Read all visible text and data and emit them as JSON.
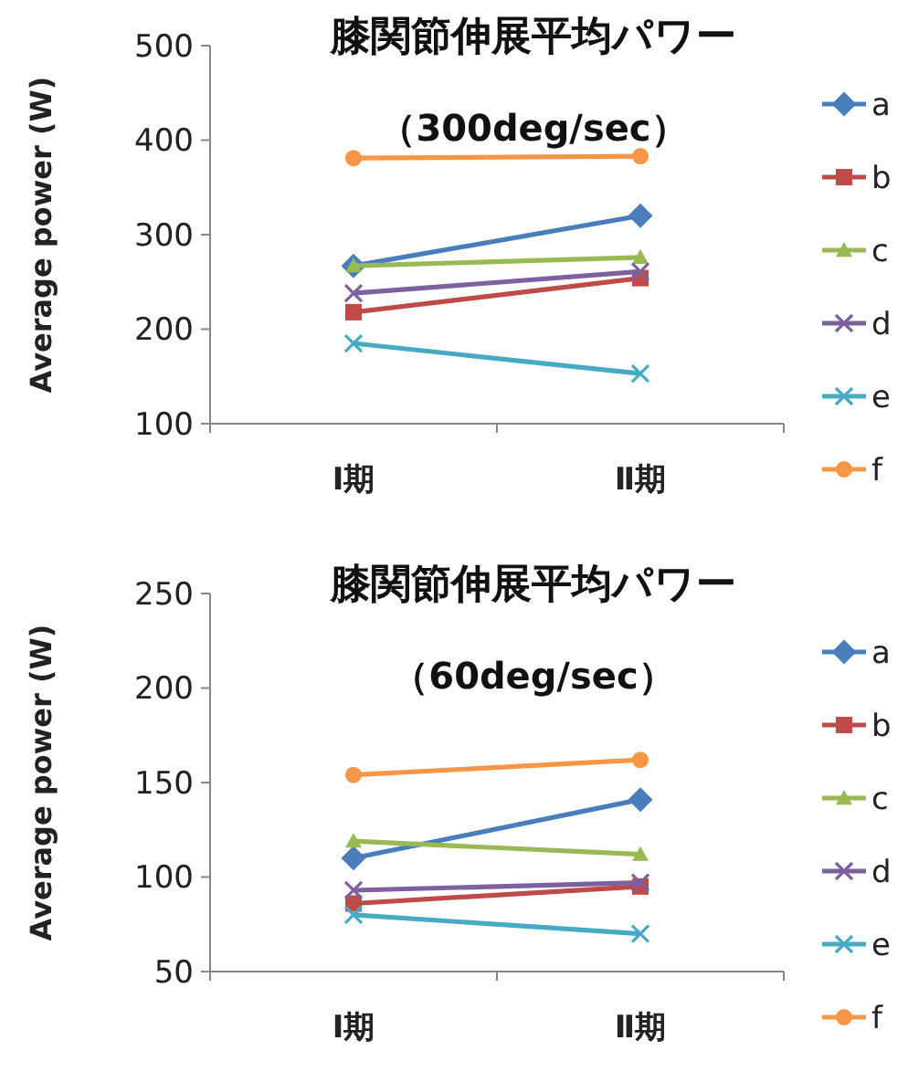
{
  "chart_data": [
    {
      "type": "line",
      "title": "膝関節伸展平均パワー",
      "subtitle": "（300deg/sec）",
      "ylabel": "Average power (W)",
      "categories": [
        "Ⅰ期",
        "Ⅱ期"
      ],
      "ylim": [
        100,
        500
      ],
      "yticks": [
        100,
        200,
        300,
        400,
        500
      ],
      "grid": false,
      "legend": "right",
      "series": [
        {
          "name": "a",
          "color": "#4a7ebb",
          "marker": "diamond",
          "values": [
            267,
            320
          ]
        },
        {
          "name": "b",
          "color": "#be4b48",
          "marker": "square",
          "values": [
            218,
            254
          ]
        },
        {
          "name": "c",
          "color": "#98b954",
          "marker": "triangle",
          "values": [
            267,
            276
          ]
        },
        {
          "name": "d",
          "color": "#7d60a0",
          "marker": "cross",
          "values": [
            238,
            261
          ]
        },
        {
          "name": "e",
          "color": "#46aac5",
          "marker": "cross",
          "values": [
            185,
            153
          ]
        },
        {
          "name": "f",
          "color": "#f79646",
          "marker": "circle",
          "values": [
            381,
            383
          ]
        }
      ]
    },
    {
      "type": "line",
      "title": "膝関節伸展平均パワー",
      "subtitle": "（60deg/sec）",
      "ylabel": "Average power (W)",
      "categories": [
        "Ⅰ期",
        "Ⅱ期"
      ],
      "ylim": [
        50,
        250
      ],
      "yticks": [
        50,
        100,
        150,
        200,
        250
      ],
      "grid": false,
      "legend": "right",
      "series": [
        {
          "name": "a",
          "color": "#4a7ebb",
          "marker": "diamond",
          "values": [
            110,
            141
          ]
        },
        {
          "name": "b",
          "color": "#be4b48",
          "marker": "square",
          "values": [
            86,
            95
          ]
        },
        {
          "name": "c",
          "color": "#98b954",
          "marker": "triangle",
          "values": [
            119,
            112
          ]
        },
        {
          "name": "d",
          "color": "#7d60a0",
          "marker": "cross",
          "values": [
            93,
            97
          ]
        },
        {
          "name": "e",
          "color": "#46aac5",
          "marker": "cross",
          "values": [
            80,
            70
          ]
        },
        {
          "name": "f",
          "color": "#f79646",
          "marker": "circle",
          "values": [
            154,
            162
          ]
        }
      ]
    }
  ]
}
